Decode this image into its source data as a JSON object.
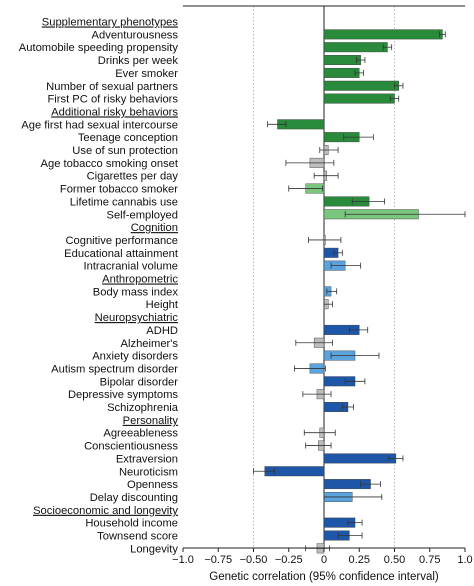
{
  "chart_data": {
    "type": "bar",
    "orientation": "horizontal",
    "xlabel": "Genetic correlation (95% confidence interval)",
    "xlim": [
      -1.0,
      1.0
    ],
    "xticks": [
      "−1.0",
      "−0.75",
      "−0.50",
      "−0.25",
      "0",
      "0.25",
      "0.50",
      "0.75",
      "1.0"
    ],
    "reference_lines": [
      -0.5,
      0,
      0.5
    ],
    "rows": [
      {
        "kind": "header",
        "label": "Supplementary phenotypes"
      },
      {
        "kind": "bar",
        "label": "Adventurousness",
        "value": 0.84,
        "ci": [
          0.82,
          0.86
        ],
        "color": "#2a8a3b"
      },
      {
        "kind": "bar",
        "label": "Automobile speeding propensity",
        "value": 0.45,
        "ci": [
          0.42,
          0.48
        ],
        "color": "#2a8a3b"
      },
      {
        "kind": "bar",
        "label": "Drinks per week",
        "value": 0.26,
        "ci": [
          0.23,
          0.29
        ],
        "color": "#2a8a3b"
      },
      {
        "kind": "bar",
        "label": "Ever smoker",
        "value": 0.25,
        "ci": [
          0.22,
          0.28
        ],
        "color": "#2a8a3b"
      },
      {
        "kind": "bar",
        "label": "Number of sexual partners",
        "value": 0.53,
        "ci": [
          0.5,
          0.56
        ],
        "color": "#2a8a3b"
      },
      {
        "kind": "bar",
        "label": "First PC of risky behaviors",
        "value": 0.5,
        "ci": [
          0.47,
          0.53
        ],
        "color": "#2a8a3b"
      },
      {
        "kind": "header",
        "label": "Additional risky behaviors"
      },
      {
        "kind": "bar",
        "label": "Age first had sexual intercourse",
        "value": -0.33,
        "ci": [
          -0.4,
          -0.27
        ],
        "color": "#2a8a3b"
      },
      {
        "kind": "bar",
        "label": "Teenage conception",
        "value": 0.25,
        "ci": [
          0.14,
          0.35
        ],
        "color": "#2a8a3b"
      },
      {
        "kind": "bar",
        "label": "Use of sun protection",
        "value": 0.03,
        "ci": [
          -0.03,
          0.1
        ],
        "color": "#bdbdbd"
      },
      {
        "kind": "bar",
        "label": "Age tobacco smoking onset",
        "value": -0.1,
        "ci": [
          -0.27,
          0.07
        ],
        "color": "#bdbdbd"
      },
      {
        "kind": "bar",
        "label": "Cigarettes per day",
        "value": 0.02,
        "ci": [
          -0.07,
          0.1
        ],
        "color": "#bdbdbd"
      },
      {
        "kind": "bar",
        "label": "Former tobacco smoker",
        "value": -0.13,
        "ci": [
          -0.25,
          -0.01
        ],
        "color": "#7bc67e"
      },
      {
        "kind": "bar",
        "label": "Lifetime cannabis use",
        "value": 0.32,
        "ci": [
          0.2,
          0.43
        ],
        "color": "#2a8a3b"
      },
      {
        "kind": "bar",
        "label": "Self-employed",
        "value": 0.67,
        "ci": [
          0.15,
          1.0
        ],
        "color": "#7bc67e"
      },
      {
        "kind": "header",
        "label": "Cognition"
      },
      {
        "kind": "bar",
        "label": "Cognitive performance",
        "value": 0.01,
        "ci": [
          -0.11,
          0.12
        ],
        "color": "#bdbdbd"
      },
      {
        "kind": "bar",
        "label": "Educational attainment",
        "value": 0.1,
        "ci": [
          0.07,
          0.13
        ],
        "color": "#1f57a8"
      },
      {
        "kind": "bar",
        "label": "Intracranial volume",
        "value": 0.15,
        "ci": [
          0.05,
          0.26
        ],
        "color": "#5ba3dc"
      },
      {
        "kind": "header",
        "label": "Anthropometric"
      },
      {
        "kind": "bar",
        "label": "Body mass index",
        "value": 0.05,
        "ci": [
          0.02,
          0.09
        ],
        "color": "#5ba3dc"
      },
      {
        "kind": "bar",
        "label": "Height",
        "value": 0.03,
        "ci": [
          0.0,
          0.06
        ],
        "color": "#bdbdbd"
      },
      {
        "kind": "header",
        "label": "Neuropsychiatric"
      },
      {
        "kind": "bar",
        "label": "ADHD",
        "value": 0.25,
        "ci": [
          0.18,
          0.31
        ],
        "color": "#1f57a8"
      },
      {
        "kind": "bar",
        "label": "Alzheimer's",
        "value": -0.07,
        "ci": [
          -0.2,
          0.06
        ],
        "color": "#bdbdbd"
      },
      {
        "kind": "bar",
        "label": "Anxiety disorders",
        "value": 0.22,
        "ci": [
          0.05,
          0.39
        ],
        "color": "#5ba3dc"
      },
      {
        "kind": "bar",
        "label": "Autism spectrum disorder",
        "value": -0.1,
        "ci": [
          -0.21,
          0.01
        ],
        "color": "#5ba3dc"
      },
      {
        "kind": "bar",
        "label": "Bipolar disorder",
        "value": 0.22,
        "ci": [
          0.15,
          0.29
        ],
        "color": "#1f57a8"
      },
      {
        "kind": "bar",
        "label": "Depressive symptoms",
        "value": -0.05,
        "ci": [
          -0.15,
          0.05
        ],
        "color": "#bdbdbd"
      },
      {
        "kind": "bar",
        "label": "Schizophrenia",
        "value": 0.17,
        "ci": [
          0.13,
          0.21
        ],
        "color": "#1f57a8"
      },
      {
        "kind": "header",
        "label": "Personality"
      },
      {
        "kind": "bar",
        "label": "Agreeableness",
        "value": -0.03,
        "ci": [
          -0.14,
          0.08
        ],
        "color": "#bdbdbd"
      },
      {
        "kind": "bar",
        "label": "Conscientiousness",
        "value": -0.04,
        "ci": [
          -0.13,
          0.05
        ],
        "color": "#bdbdbd"
      },
      {
        "kind": "bar",
        "label": "Extraversion",
        "value": 0.51,
        "ci": [
          0.46,
          0.56
        ],
        "color": "#1f57a8"
      },
      {
        "kind": "bar",
        "label": "Neuroticism",
        "value": -0.42,
        "ci": [
          -0.5,
          -0.35
        ],
        "color": "#1f57a8"
      },
      {
        "kind": "bar",
        "label": "Openness",
        "value": 0.33,
        "ci": [
          0.26,
          0.4
        ],
        "color": "#1f57a8"
      },
      {
        "kind": "bar",
        "label": "Delay discounting",
        "value": 0.2,
        "ci": [
          0.0,
          0.41
        ],
        "color": "#5ba3dc"
      },
      {
        "kind": "header",
        "label": "Socioeconomic and longevity"
      },
      {
        "kind": "bar",
        "label": "Household income",
        "value": 0.22,
        "ci": [
          0.17,
          0.27
        ],
        "color": "#1f57a8"
      },
      {
        "kind": "bar",
        "label": "Townsend score",
        "value": 0.18,
        "ci": [
          0.1,
          0.27
        ],
        "color": "#1f57a8"
      },
      {
        "kind": "bar",
        "label": "Longevity",
        "value": -0.05,
        "ci": [
          -0.13,
          0.04
        ],
        "color": "#bdbdbd"
      }
    ]
  }
}
